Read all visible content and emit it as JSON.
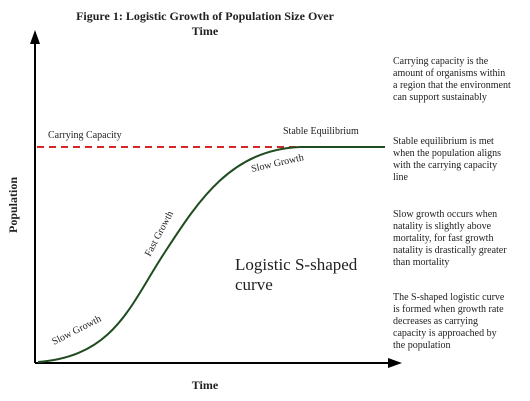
{
  "title": {
    "lines": [
      "Figure 1: Logistic Growth of Population Size  Over",
      "Time"
    ]
  },
  "axes": {
    "y_label": "Population",
    "x_label": "Time"
  },
  "curve_labels": {
    "carrying_capacity": "Carrying Capacity",
    "stable_equilibrium": "Stable Equilibrium",
    "slow_growth_top": "Slow Growth",
    "fast_growth": "Fast Growth",
    "slow_growth_bottom": "Slow Growth",
    "curve_name": [
      "Logistic S-shaped",
      "curve"
    ]
  },
  "notes": [
    [
      "Carrying capacity is the",
      "amount of organisms within",
      "a region that the environment",
      "can support sustainably"
    ],
    [
      "Stable equilibrium is met",
      "when the population aligns",
      "with the carrying capacity",
      "line"
    ],
    [
      "Slow growth occurs when",
      "natality is slightly above",
      "mortality, for fast growth",
      "natality is drastically greater",
      "than mortality"
    ],
    [
      "The S-shaped logistic curve",
      "is formed when growth rate",
      "decreases as carrying",
      "capacity is approached by",
      "the population"
    ]
  ]
}
